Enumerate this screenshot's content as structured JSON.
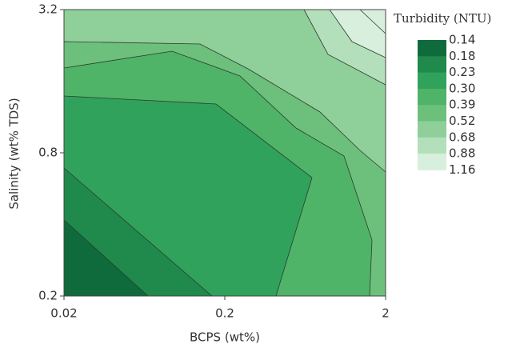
{
  "chart_data": {
    "type": "contour",
    "x_label": "BCPS (wt%)",
    "y_label": "Salinity (wt% TDS)",
    "xlim": [
      0.02,
      2
    ],
    "xticks": [
      0.02,
      0.2,
      2
    ],
    "xscale": "log",
    "ylim": [
      0.2,
      3.2
    ],
    "yticks": [
      0.2,
      0.8,
      3.2
    ],
    "yscale": "log",
    "colorbar_title": "Turbidity (NTU)",
    "levels": [
      0.14,
      0.18,
      0.23,
      {
        "value": 0.3,
        "label": "0.30"
      },
      0.39,
      0.52,
      0.68,
      0.88,
      1.16
    ],
    "colors": [
      "#0f6b3b",
      "#1f8a4b",
      "#30a25c",
      "#4fb467",
      "#6dc07b",
      "#8fcf99",
      "#b3dfbb",
      "#d9efdd"
    ]
  }
}
